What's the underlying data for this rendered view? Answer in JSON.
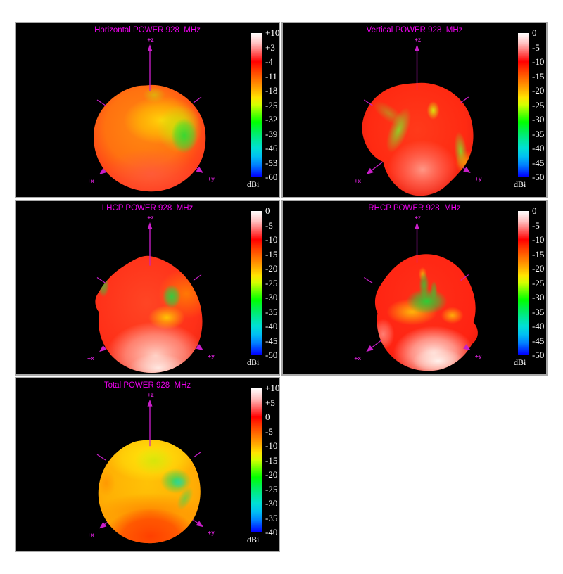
{
  "colors": {
    "background": "#ffffff",
    "panel_bg": "#000000",
    "panel_border": "#a8a8a8",
    "title_color": "#ee00ee",
    "axis_color": "#c81ec8",
    "tick_color": "#ffffff"
  },
  "panels": [
    {
      "id": "horizontal",
      "title": "Horizontal POWER 928  MHz",
      "axis_labels": {
        "z": "+z",
        "x": "+x",
        "y": "+y"
      },
      "colorbar": {
        "unit": "dBi",
        "ticks": [
          "+10",
          "+3",
          "-4",
          "-11",
          "-18",
          "-25",
          "-32",
          "-39",
          "-46",
          "-53",
          "-60"
        ]
      }
    },
    {
      "id": "vertical",
      "title": "Vertical POWER 928  MHz",
      "axis_labels": {
        "z": "+z",
        "x": "+x",
        "y": "+y"
      },
      "colorbar": {
        "unit": "dBi",
        "ticks": [
          "0",
          "-5",
          "-10",
          "-15",
          "-20",
          "-25",
          "-30",
          "-35",
          "-40",
          "-45",
          "-50"
        ]
      }
    },
    {
      "id": "lhcp",
      "title": "LHCP POWER 928  MHz",
      "axis_labels": {
        "z": "+z",
        "x": "+x",
        "y": "+y"
      },
      "colorbar": {
        "unit": "dBi",
        "ticks": [
          "0",
          "-5",
          "-10",
          "-15",
          "-20",
          "-25",
          "-30",
          "-35",
          "-40",
          "-45",
          "-50"
        ]
      }
    },
    {
      "id": "rhcp",
      "title": "RHCP POWER 928  MHz",
      "axis_labels": {
        "z": "+z",
        "x": "+x",
        "y": "+y"
      },
      "colorbar": {
        "unit": "dBi",
        "ticks": [
          "0",
          "-5",
          "-10",
          "-15",
          "-20",
          "-25",
          "-30",
          "-35",
          "-40",
          "-45",
          "-50"
        ]
      }
    },
    {
      "id": "total",
      "title": "Total POWER 928  MHz",
      "axis_labels": {
        "z": "+z",
        "x": "+x",
        "y": "+y"
      },
      "colorbar": {
        "unit": "dBi",
        "ticks": [
          "+10",
          "+5",
          "0",
          "-5",
          "-10",
          "-15",
          "-20",
          "-25",
          "-30",
          "-35",
          "-40"
        ]
      }
    }
  ],
  "chart_data": [
    {
      "type": "heatmap",
      "subtype": "3d-antenna-radiation-pattern",
      "title": "Horizontal POWER 928  MHz",
      "quantity": "POWER",
      "polarization": "Horizontal",
      "frequency_mhz": 928,
      "axes": [
        "+x",
        "+y",
        "+z"
      ],
      "colorbar": {
        "unit": "dBi",
        "max": 10,
        "min": -60,
        "tick_step": 7,
        "ticks": [
          10,
          3,
          -4,
          -11,
          -18,
          -25,
          -32,
          -39,
          -46,
          -53,
          -60
        ],
        "colors_top_to_bottom": [
          "#ffffff",
          "#ff0000",
          "#ff7700",
          "#ffee00",
          "#00ff00",
          "#00e0d4",
          "#0000ff"
        ],
        "position": "right"
      },
      "surface_summary": "near-spherical orange/red lobe mostly -4 to -18 dBi; yellow-green/green null region (~ -18 to -32 dBi) upper right of center; deeper red (~ -4 dBi band) across the bottom"
    },
    {
      "type": "heatmap",
      "subtype": "3d-antenna-radiation-pattern",
      "title": "Vertical POWER 928  MHz",
      "quantity": "POWER",
      "polarization": "Vertical",
      "frequency_mhz": 928,
      "axes": [
        "+x",
        "+y",
        "+z"
      ],
      "colorbar": {
        "unit": "dBi",
        "max": 0,
        "min": -50,
        "tick_step": 5,
        "ticks": [
          0,
          -5,
          -10,
          -15,
          -20,
          -25,
          -30,
          -35,
          -40,
          -45,
          -50
        ],
        "colors_top_to_bottom": [
          "#ffffff",
          "#ff0000",
          "#ff7700",
          "#ffee00",
          "#00ff00",
          "#00e0d4",
          "#0000ff"
        ],
        "position": "right"
      },
      "surface_summary": "red lobe around -5 to -10 dBi with yellow-green crease ridges (~ -20 dBi) running from apex down the left flank and right side; lighter pink-red bulge (~ -2 dBi) at lower center"
    },
    {
      "type": "heatmap",
      "subtype": "3d-antenna-radiation-pattern",
      "title": "LHCP POWER 928  MHz",
      "quantity": "POWER",
      "polarization": "LHCP",
      "frequency_mhz": 928,
      "axes": [
        "+x",
        "+y",
        "+z"
      ],
      "colorbar": {
        "unit": "dBi",
        "max": 0,
        "min": -50,
        "tick_step": 5,
        "ticks": [
          0,
          -5,
          -10,
          -15,
          -20,
          -25,
          -30,
          -35,
          -40,
          -45,
          -50
        ],
        "colors_top_to_bottom": [
          "#ffffff",
          "#ff0000",
          "#ff7700",
          "#ffee00",
          "#00ff00",
          "#00e0d4",
          "#0000ff"
        ],
        "position": "right"
      },
      "surface_summary": "red body (~ -8 dBi) with ridged apex; pinkish-white bottom lobe near 0 to -3 dBi; orange upper-right shoulder; small green dips (~ -25 dBi) right of center and at left edge; yellow patch (~ -18 dBi) below the green dip"
    },
    {
      "type": "heatmap",
      "subtype": "3d-antenna-radiation-pattern",
      "title": "RHCP POWER 928  MHz",
      "quantity": "POWER",
      "polarization": "RHCP",
      "frequency_mhz": 928,
      "axes": [
        "+x",
        "+y",
        "+z"
      ],
      "colorbar": {
        "unit": "dBi",
        "max": 0,
        "min": -50,
        "tick_step": 5,
        "ticks": [
          0,
          -5,
          -10,
          -15,
          -20,
          -25,
          -30,
          -35,
          -40,
          -45,
          -50
        ],
        "colors_top_to_bottom": [
          "#ffffff",
          "#ff0000",
          "#ff7700",
          "#ffee00",
          "#00ff00",
          "#00e0d4",
          "#0000ff"
        ],
        "position": "right"
      },
      "surface_summary": "red lobe with prominent central green null (~ -25 dBi) ringed by yellow (~ -18 dBi) just above center; large whitish-pink bottom region near 0 dBi extending to lower right"
    },
    {
      "type": "heatmap",
      "subtype": "3d-antenna-radiation-pattern",
      "title": "Total POWER 928  MHz",
      "quantity": "POWER",
      "polarization": "Total",
      "frequency_mhz": 928,
      "axes": [
        "+x",
        "+y",
        "+z"
      ],
      "colorbar": {
        "unit": "dBi",
        "max": 10,
        "min": -40,
        "tick_step": 5,
        "ticks": [
          10,
          5,
          0,
          -5,
          -10,
          -15,
          -20,
          -25,
          -30,
          -35,
          -40
        ],
        "colors_top_to_bottom": [
          "#ffffff",
          "#ff0000",
          "#ff7700",
          "#ffee00",
          "#00ff00",
          "#00e0d4",
          "#0000ff"
        ],
        "position": "right"
      },
      "surface_summary": "yellow-orange lobe: upper half yellow/yellow-green (~ -8 to -12 dBi), green-cyan dip (~ -15 to -18 dBi) right of center, grading through orange to red (~ 0 to -4 dBi) across the bottom"
    }
  ]
}
